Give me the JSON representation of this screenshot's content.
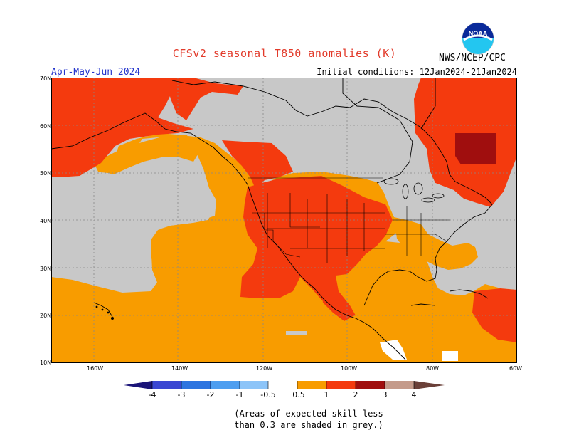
{
  "title": "CFSv2 seasonal T850 anomalies (K)",
  "agency": "NWS/NCEP/CPC",
  "logo_text": "NOAA",
  "season": "Apr-May-Jun 2024",
  "initial_conditions": "Initial conditions: 12Jan2024-21Jan2024",
  "lat_labels": [
    "70N",
    "60N",
    "50N",
    "40N",
    "30N",
    "20N",
    "10N"
  ],
  "lon_labels": [
    "160W",
    "140W",
    "120W",
    "100W",
    "80W",
    "60W"
  ],
  "colorbar": {
    "labels": [
      "-4",
      "-3",
      "-2",
      "-1",
      "-0.5",
      "0.5",
      "1",
      "2",
      "3",
      "4"
    ],
    "colors": [
      "#2a1ea0",
      "#3a46d2",
      "#2c74e0",
      "#4d9ef0",
      "#8cc4f8",
      "#ffffff",
      "#f89c00",
      "#f43a0e",
      "#a00e0e",
      "#c49a8a",
      "#6a4038"
    ]
  },
  "legend_colors": {
    "grey": "#c8c8c8",
    "orange": "#f89c00",
    "red": "#f43a0e",
    "darkred": "#a00e0e"
  },
  "note_line1": "(Areas of expected skill less",
  "note_line2": "than 0.3 are shaded in grey.)"
}
